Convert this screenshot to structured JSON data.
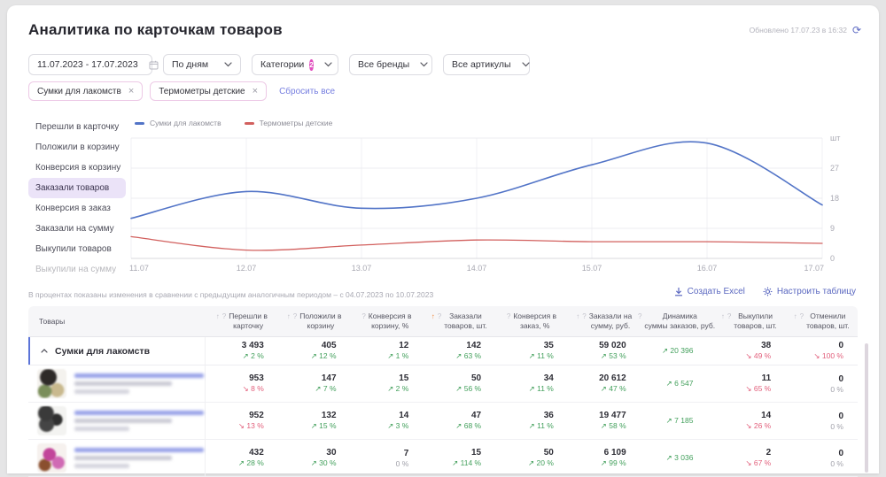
{
  "header": {
    "title": "Аналитика по карточкам товаров",
    "updated": "Обновлено 17.07.23 в 16:32"
  },
  "filters": {
    "date_range": "11.07.2023 - 17.07.2023",
    "granularity": "По дням",
    "categories_label": "Категории",
    "categories_count": "2",
    "brands": "Все бренды",
    "articles": "Все артикулы",
    "chips": [
      "Сумки для лакомств",
      "Термометры детские"
    ],
    "reset_all": "Сбросить все"
  },
  "metrics_sidebar": [
    {
      "label": "Перешли в карточку",
      "selected": false,
      "faded": false
    },
    {
      "label": "Положили в корзину",
      "selected": false,
      "faded": false
    },
    {
      "label": "Конверсия в корзину",
      "selected": false,
      "faded": false
    },
    {
      "label": "Заказали товаров",
      "selected": true,
      "faded": false
    },
    {
      "label": "Конверсия в заказ",
      "selected": false,
      "faded": false
    },
    {
      "label": "Заказали на сумму",
      "selected": false,
      "faded": false
    },
    {
      "label": "Выкупили товаров",
      "selected": false,
      "faded": false
    },
    {
      "label": "Выкупили на сумму",
      "selected": false,
      "faded": true
    }
  ],
  "chart_data": {
    "type": "line",
    "x": [
      "11.07",
      "12.07",
      "13.07",
      "14.07",
      "15.07",
      "16.07",
      "17.07"
    ],
    "series": [
      {
        "name": "Сумки для лакомств",
        "color": "#5274c7",
        "values": [
          12,
          20,
          15,
          18,
          28,
          34.5,
          16
        ]
      },
      {
        "name": "Термометры детские",
        "color": "#d2605e",
        "values": [
          6.5,
          2.5,
          4,
          5.5,
          5,
          5,
          4.5
        ]
      }
    ],
    "ylim": [
      0,
      36
    ],
    "yticks": [
      0,
      9,
      18,
      27
    ],
    "unit_label": "шт",
    "grid": true,
    "legend_position": "top-left",
    "smooth": true
  },
  "table": {
    "note": "В процентах показаны изменения в сравнении с предыдущим аналогичным периодом – с 04.07.2023 по 10.07.2023",
    "actions": {
      "excel": "Создать Excel",
      "configure": "Настроить таблицу"
    },
    "first_column": "Товары",
    "columns": [
      {
        "lines": [
          "Перешли в",
          "карточку"
        ],
        "sortable": true,
        "active": false
      },
      {
        "lines": [
          "Положили в",
          "корзину"
        ],
        "sortable": true,
        "active": false
      },
      {
        "lines": [
          "Конверсия в",
          "корзину, %"
        ],
        "sortable": false,
        "active": false
      },
      {
        "lines": [
          "Заказали",
          "товаров, шт."
        ],
        "sortable": true,
        "active": true
      },
      {
        "lines": [
          "Конверсия в",
          "заказ, %"
        ],
        "sortable": false,
        "active": false
      },
      {
        "lines": [
          "Заказали на",
          "сумму, руб."
        ],
        "sortable": true,
        "active": false
      },
      {
        "lines": [
          "Динамика",
          "суммы заказов, руб."
        ],
        "sortable": false,
        "active": false
      },
      {
        "lines": [
          "Выкупили",
          "товаров, шт."
        ],
        "sortable": true,
        "active": false
      },
      {
        "lines": [
          "Отменили",
          "товаров, шт."
        ],
        "sortable": true,
        "active": false
      }
    ],
    "group_row": {
      "name": "Сумки для лакомств",
      "cells": [
        {
          "value": "3 493",
          "change": "2 %",
          "trend": "up"
        },
        {
          "value": "405",
          "change": "12 %",
          "trend": "up"
        },
        {
          "value": "12",
          "change": "1 %",
          "trend": "up"
        },
        {
          "value": "142",
          "change": "63 %",
          "trend": "up"
        },
        {
          "value": "35",
          "change": "11 %",
          "trend": "up"
        },
        {
          "value": "59 020",
          "change": "53 %",
          "trend": "up"
        },
        {
          "value": null,
          "change": "20 396",
          "trend": "up"
        },
        {
          "value": "38",
          "change": "49 %",
          "trend": "down"
        },
        {
          "value": "0",
          "change": "100 %",
          "trend": "down"
        }
      ]
    },
    "rows": [
      {
        "thumb": "thumb-1",
        "redacted": true,
        "cells": [
          {
            "value": "953",
            "change": "8 %",
            "trend": "down"
          },
          {
            "value": "147",
            "change": "7 %",
            "trend": "up"
          },
          {
            "value": "15",
            "change": "2 %",
            "trend": "up"
          },
          {
            "value": "50",
            "change": "56 %",
            "trend": "up"
          },
          {
            "value": "34",
            "change": "11 %",
            "trend": "up"
          },
          {
            "value": "20 612",
            "change": "47 %",
            "trend": "up"
          },
          {
            "value": null,
            "change": "6 547",
            "trend": "up"
          },
          {
            "value": "11",
            "change": "65 %",
            "trend": "down"
          },
          {
            "value": "0",
            "change": "0 %",
            "trend": "flat"
          }
        ]
      },
      {
        "thumb": "thumb-2",
        "redacted": true,
        "cells": [
          {
            "value": "952",
            "change": "13 %",
            "trend": "down"
          },
          {
            "value": "132",
            "change": "15 %",
            "trend": "up"
          },
          {
            "value": "14",
            "change": "3 %",
            "trend": "up"
          },
          {
            "value": "47",
            "change": "68 %",
            "trend": "up"
          },
          {
            "value": "36",
            "change": "11 %",
            "trend": "up"
          },
          {
            "value": "19 477",
            "change": "58 %",
            "trend": "up"
          },
          {
            "value": null,
            "change": "7 185",
            "trend": "up"
          },
          {
            "value": "14",
            "change": "26 %",
            "trend": "down"
          },
          {
            "value": "0",
            "change": "0 %",
            "trend": "flat"
          }
        ]
      },
      {
        "thumb": "thumb-3",
        "redacted": true,
        "cells": [
          {
            "value": "432",
            "change": "28 %",
            "trend": "up"
          },
          {
            "value": "30",
            "change": "30 %",
            "trend": "up"
          },
          {
            "value": "7",
            "change": "0 %",
            "trend": "flat"
          },
          {
            "value": "15",
            "change": "114 %",
            "trend": "up"
          },
          {
            "value": "50",
            "change": "20 %",
            "trend": "up"
          },
          {
            "value": "6 109",
            "change": "99 %",
            "trend": "up"
          },
          {
            "value": null,
            "change": "3 036",
            "trend": "up"
          },
          {
            "value": "2",
            "change": "67 %",
            "trend": "down"
          },
          {
            "value": "0",
            "change": "0 %",
            "trend": "flat"
          }
        ]
      }
    ]
  }
}
